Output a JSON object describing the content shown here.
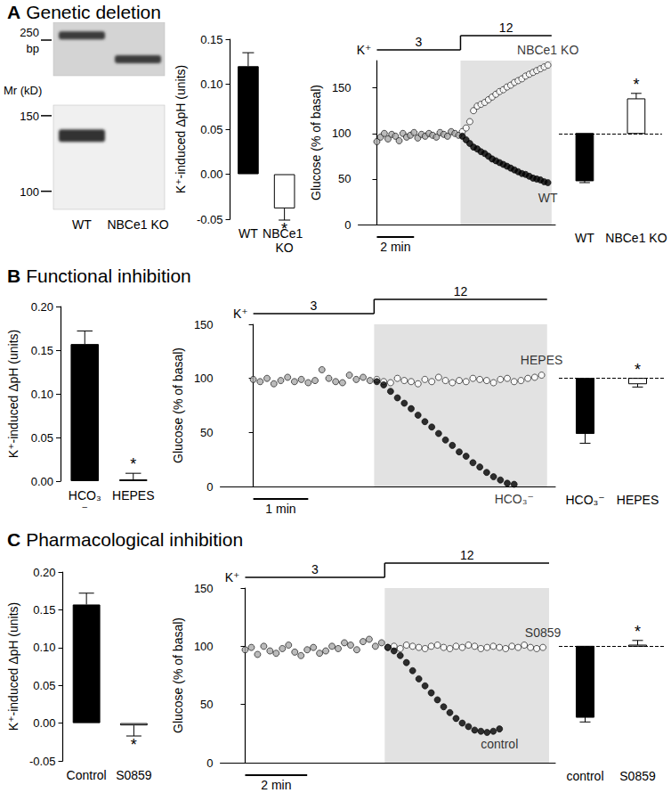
{
  "panels": [
    {
      "letter": "A",
      "title": "Genetic deletion"
    },
    {
      "letter": "B",
      "title": "Functional inhibition"
    },
    {
      "letter": "C",
      "title": "Pharmacological inhibition"
    }
  ],
  "gel": {
    "lanes": [
      "WT",
      "NBCe1 KO"
    ],
    "blots": [
      {
        "unit_label": "bp",
        "range": [
          150,
          300
        ],
        "markers": [
          250
        ],
        "bands": [
          262,
          195
        ]
      },
      {
        "unit_label": "Mr (kD)",
        "range": [
          88,
          157
        ],
        "markers": [
          150,
          100
        ],
        "bands": [
          138,
          null
        ]
      }
    ]
  },
  "chart_data": [
    {
      "type": "bar",
      "y_label": "K⁺-induced ΔpH (units)",
      "categories": [
        "WT",
        "NBCe1 KO"
      ],
      "values": [
        0.12,
        -0.038
      ],
      "errors": [
        0.015,
        0.013
      ],
      "colors": [
        "#000000",
        "#ffffff"
      ],
      "ylim": [
        -0.05,
        0.15
      ],
      "yticks": [
        -0.05,
        {
          "value": 0,
          "label": "0.00"
        },
        0.05,
        {
          "value": 0.1,
          "label": "0.10"
        },
        0.15
      ],
      "annotations": [
        {
          "category": "NBCe1 KO",
          "text": "*"
        }
      ]
    },
    {
      "type": "scatter",
      "y_label": "Glucose (% of basal)",
      "xlim": [
        -1,
        9.6
      ],
      "ylim": [
        0,
        180
      ],
      "yticks": [
        0,
        50,
        100,
        150
      ],
      "tick_labels": "y",
      "baseline": 100,
      "stimulus": {
        "label": "K⁺",
        "levels": [
          {
            "label": "3",
            "from": 0,
            "to": 4.5
          },
          {
            "label": "12",
            "from": 4.5,
            "to": 9.4
          }
        ]
      },
      "scale_bar": {
        "start": 0,
        "length": 2,
        "label": "2 min"
      },
      "series": [
        {
          "color": "#aaaaaa",
          "x": [
            0,
            0.2,
            0.4,
            0.6,
            0.8,
            1,
            1.2,
            1.4,
            1.6,
            1.8,
            2,
            2.2,
            2.4,
            2.6,
            2.8,
            3,
            3.2,
            3.4,
            3.6,
            3.8,
            4,
            4.2,
            4.4
          ],
          "values": [
            91,
            96,
            100,
            94,
            99,
            97,
            92,
            100,
            96,
            98,
            101,
            95,
            99,
            97,
            100,
            98,
            96,
            101,
            99,
            97,
            102,
            100,
            98
          ]
        },
        {
          "name": "NBCe1 KO",
          "color": "#ffffff",
          "x": [
            4.6,
            4.8,
            5,
            5.2,
            5.4,
            5.6,
            5.8,
            6,
            6.2,
            6.4,
            6.6,
            6.8,
            7,
            7.2,
            7.4,
            7.6,
            7.8,
            8,
            8.2,
            8.4,
            8.6,
            8.8,
            9,
            9.2
          ],
          "values": [
            102,
            106,
            113,
            125,
            130,
            132,
            134,
            137,
            140,
            143,
            146,
            148,
            151,
            153,
            156,
            158,
            160,
            163,
            165,
            167,
            169,
            171,
            173,
            175
          ]
        },
        {
          "name": "WT",
          "color": "#000000",
          "x": [
            4.6,
            4.8,
            5,
            5.2,
            5.4,
            5.6,
            5.8,
            6,
            6.2,
            6.4,
            6.6,
            6.8,
            7,
            7.2,
            7.4,
            7.6,
            7.8,
            8,
            8.2,
            8.4,
            8.6,
            8.8,
            9,
            9.2
          ],
          "values": [
            97,
            93,
            89,
            85,
            83,
            80,
            78,
            75,
            72,
            70,
            68,
            66,
            64,
            62,
            60,
            58,
            56,
            55,
            53,
            51,
            50,
            49,
            47,
            46
          ]
        }
      ],
      "summary": {
        "type": "bar",
        "categories": [
          "WT",
          "NBCe1 KO"
        ],
        "values": [
          48,
          138
        ],
        "errors": [
          2,
          6
        ],
        "colors": [
          "#000000",
          "#ffffff"
        ],
        "annotations": [
          {
            "category": "NBCe1 KO",
            "text": "*"
          }
        ]
      }
    },
    {
      "type": "bar",
      "y_label": "K⁺-induced ΔpH (units)",
      "categories": [
        "HCO₃⁻",
        "HEPES"
      ],
      "values": [
        0.157,
        0.002
      ],
      "errors": [
        0.015,
        0.007
      ],
      "colors": [
        "#000000",
        "#ffffff"
      ],
      "ylim": [
        0,
        0.2
      ],
      "yticks": [
        {
          "value": 0,
          "label": "0.00"
        },
        0.05,
        {
          "value": 0.1,
          "label": "0.10"
        },
        0.15,
        {
          "value": 0.2,
          "label": "0.20"
        }
      ],
      "annotations": [
        {
          "category": "HEPES",
          "text": "*"
        }
      ]
    },
    {
      "type": "scatter",
      "y_label": "Glucose (% of basal)",
      "xlim": [
        -0.6,
        5.5
      ],
      "ylim": [
        0,
        150
      ],
      "yticks": [
        0,
        50,
        100,
        150
      ],
      "tick_labels": "y",
      "baseline": 100,
      "stimulus": {
        "label": "K⁺",
        "levels": [
          {
            "label": "3",
            "from": 0,
            "to": 2.2
          },
          {
            "label": "12",
            "from": 2.2,
            "to": 5.35
          }
        ]
      },
      "scale_bar": {
        "start": 0,
        "length": 1,
        "label": "1 min"
      },
      "series": [
        {
          "color": "#aaaaaa",
          "x": [
            0,
            0.125,
            0.25,
            0.375,
            0.5,
            0.625,
            0.75,
            0.875,
            1,
            1.125,
            1.25,
            1.375,
            1.5,
            1.625,
            1.75,
            1.875,
            2,
            2.125
          ],
          "values": [
            99,
            97,
            100,
            95,
            98,
            101,
            97,
            99,
            96,
            98,
            108,
            100,
            97,
            96,
            103,
            99,
            101,
            98
          ]
        },
        {
          "name": "HEPES",
          "color": "#ffffff",
          "x": [
            2.25,
            2.375,
            2.5,
            2.625,
            2.75,
            2.875,
            3,
            3.125,
            3.25,
            3.375,
            3.5,
            3.625,
            3.75,
            3.875,
            4,
            4.125,
            4.25,
            4.375,
            4.5,
            4.625,
            4.75,
            4.875,
            5,
            5.125,
            5.25
          ],
          "values": [
            99,
            97,
            96,
            100,
            98,
            97,
            95,
            99,
            97,
            101,
            98,
            96,
            98,
            97,
            100,
            99,
            98,
            96,
            99,
            100,
            97,
            98,
            100,
            101,
            103
          ]
        },
        {
          "name": "HCO₃⁻",
          "color": "#000000",
          "x": [
            2.25,
            2.375,
            2.5,
            2.625,
            2.75,
            2.875,
            3,
            3.125,
            3.25,
            3.375,
            3.5,
            3.625,
            3.75,
            3.875,
            4,
            4.125,
            4.25,
            4.375,
            4.5,
            4.625,
            4.75
          ],
          "values": [
            97,
            94,
            88,
            82,
            77,
            72,
            66,
            60,
            55,
            49,
            43,
            38,
            32,
            28,
            22,
            18,
            13,
            9,
            6,
            3,
            2
          ]
        }
      ],
      "summary": {
        "type": "bar",
        "categories": [
          "HCO₃⁻",
          "HEPES"
        ],
        "values": [
          49,
          95
        ],
        "errors": [
          9,
          3
        ],
        "colors": [
          "#000000",
          "#ffffff"
        ],
        "annotations": [
          {
            "category": "HEPES",
            "text": "*"
          }
        ]
      }
    },
    {
      "type": "bar",
      "y_label": "K⁺-induced ΔpH (units)",
      "categories": [
        "Control",
        "S0859"
      ],
      "values": [
        0.157,
        -0.003
      ],
      "errors": [
        0.015,
        0.014
      ],
      "colors": [
        "#000000",
        "#ffffff"
      ],
      "ylim": [
        -0.05,
        0.2
      ],
      "yticks": [
        -0.05,
        {
          "value": 0,
          "label": "0.00"
        },
        0.05,
        {
          "value": 0.1,
          "label": "0.10"
        },
        0.15,
        {
          "value": 0.2,
          "label": "0.20"
        }
      ],
      "annotations": [
        {
          "category": "S0859",
          "text": "*"
        }
      ]
    },
    {
      "type": "scatter",
      "y_label": "Glucose (% of basal)",
      "xlim": [
        -0.8,
        10
      ],
      "ylim": [
        0,
        150
      ],
      "yticks": [
        0,
        50,
        100,
        150
      ],
      "tick_labels": "y",
      "baseline": 100,
      "stimulus": {
        "label": "K⁺",
        "levels": [
          {
            "label": "3",
            "from": 0,
            "to": 4.5
          },
          {
            "label": "12",
            "from": 4.5,
            "to": 9.8
          }
        ]
      },
      "scale_bar": {
        "start": 0,
        "length": 2,
        "label": "2 min"
      },
      "series": [
        {
          "color": "#aaaaaa",
          "x": [
            0,
            0.2,
            0.4,
            0.6,
            0.8,
            1,
            1.2,
            1.4,
            1.6,
            1.8,
            2,
            2.2,
            2.4,
            2.6,
            2.8,
            3,
            3.2,
            3.4,
            3.6,
            3.8,
            4,
            4.2,
            4.4
          ],
          "values": [
            97,
            99,
            93,
            100,
            96,
            94,
            98,
            101,
            95,
            92,
            97,
            99,
            94,
            96,
            100,
            98,
            103,
            101,
            97,
            104,
            106,
            100,
            103
          ]
        },
        {
          "name": "S0859",
          "color": "#ffffff",
          "x": [
            4.6,
            4.8,
            5,
            5.2,
            5.4,
            5.6,
            5.8,
            6,
            6.2,
            6.4,
            6.6,
            6.8,
            7,
            7.2,
            7.4,
            7.6,
            7.8,
            8,
            8.2,
            8.4,
            8.6,
            8.8,
            9,
            9.2,
            9.4,
            9.6
          ],
          "values": [
            99,
            100,
            98,
            101,
            100,
            99,
            98,
            100,
            101,
            99,
            98,
            100,
            99,
            101,
            100,
            98,
            99,
            100,
            99,
            98,
            100,
            99,
            101,
            99,
            98,
            99
          ]
        },
        {
          "name": "control",
          "color": "#000000",
          "x": [
            4.6,
            4.8,
            5,
            5.2,
            5.4,
            5.6,
            5.8,
            6,
            6.2,
            6.4,
            6.6,
            6.8,
            7,
            7.2,
            7.4,
            7.6,
            7.8,
            8,
            8.2
          ],
          "values": [
            99,
            96,
            92,
            86,
            79,
            72,
            66,
            60,
            54,
            48,
            43,
            38,
            34,
            31,
            28,
            27,
            26,
            27,
            29
          ]
        }
      ],
      "summary": {
        "type": "bar",
        "categories": [
          "control",
          "S0859"
        ],
        "values": [
          39,
          101
        ],
        "errors": [
          4,
          4
        ],
        "colors": [
          "#000000",
          "#ffffff"
        ],
        "annotations": [
          {
            "category": "S0859",
            "text": "*"
          }
        ]
      }
    }
  ]
}
